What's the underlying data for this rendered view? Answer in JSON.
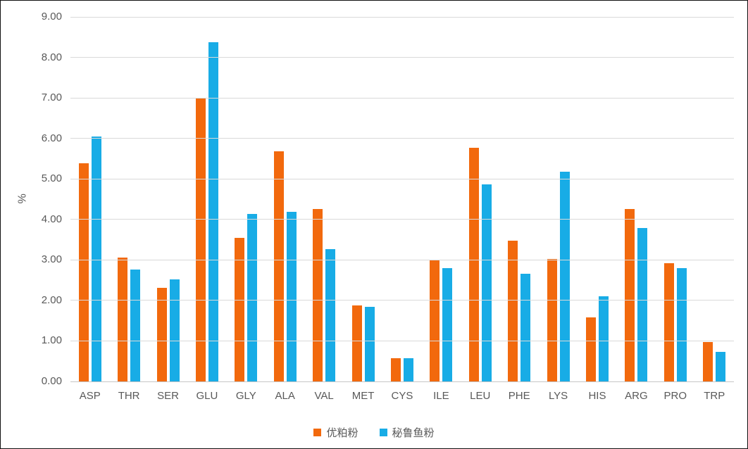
{
  "chart_data": {
    "type": "bar",
    "title": "",
    "ylabel": "%",
    "xlabel": "",
    "ylim": [
      0,
      9
    ],
    "ytick_step": 1,
    "y_tick_labels": [
      "0.00",
      "1.00",
      "2.00",
      "3.00",
      "4.00",
      "5.00",
      "6.00",
      "7.00",
      "8.00",
      "9.00"
    ],
    "grid": true,
    "legend_position": "bottom",
    "categories": [
      "ASP",
      "THR",
      "SER",
      "GLU",
      "GLY",
      "ALA",
      "VAL",
      "MET",
      "CYS",
      "ILE",
      "LEU",
      "PHE",
      "LYS",
      "HIS",
      "ARG",
      "PRO",
      "TRP"
    ],
    "series": [
      {
        "name": "优粕粉",
        "color": "#F2690D",
        "values": [
          5.38,
          3.06,
          2.31,
          6.98,
          3.55,
          5.68,
          4.26,
          1.87,
          0.58,
          2.99,
          5.76,
          3.47,
          3.02,
          1.59,
          4.26,
          2.92,
          0.97
        ]
      },
      {
        "name": "秘鲁鱼粉",
        "color": "#18ACE6",
        "values": [
          6.04,
          2.76,
          2.52,
          8.37,
          4.14,
          4.19,
          3.26,
          1.85,
          0.57,
          2.8,
          4.87,
          2.66,
          5.18,
          2.11,
          3.79,
          2.8,
          0.73
        ]
      }
    ],
    "colors": {
      "gridline": "#d9d9d9",
      "axis_line": "#c6c6c6",
      "tick_text": "#595959",
      "legend_text": "#595959"
    }
  }
}
